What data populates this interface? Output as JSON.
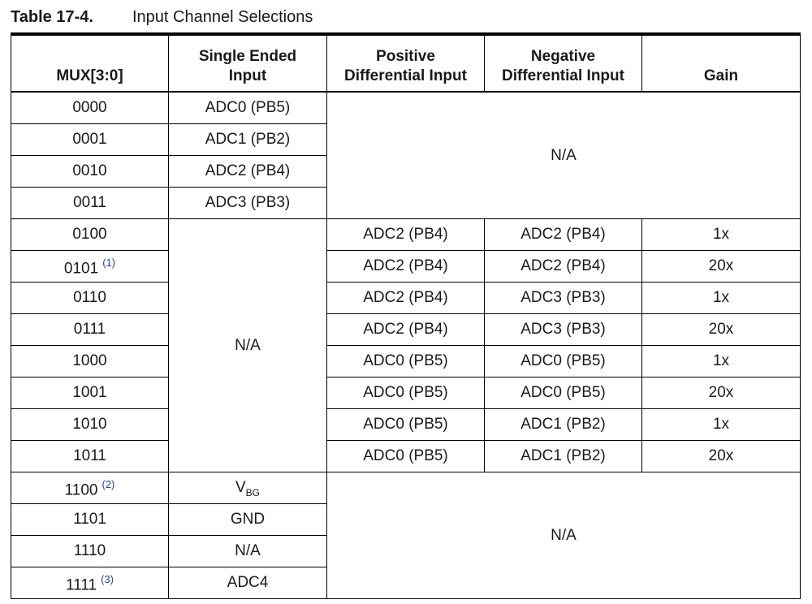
{
  "caption": {
    "number": "Table 17-4.",
    "title": "Input Channel Selections"
  },
  "headers": {
    "mux": "MUX[3:0]",
    "single_line1": "Single Ended",
    "single_line2": "Input",
    "pos_line1": "Positive",
    "pos_line2": "Differential Input",
    "neg_line1": "Negative",
    "neg_line2": "Differential Input",
    "gain": "Gain"
  },
  "na": "N/A",
  "rows": [
    {
      "mux": "0000",
      "single": "ADC0 (PB5)"
    },
    {
      "mux": "0001",
      "single": "ADC1 (PB2)"
    },
    {
      "mux": "0010",
      "single": "ADC2 (PB4)"
    },
    {
      "mux": "0011",
      "single": "ADC3 (PB3)"
    },
    {
      "mux": "0100",
      "pos": "ADC2 (PB4)",
      "neg": "ADC2 (PB4)",
      "gain": "1x"
    },
    {
      "mux": "0101",
      "note": "(1)",
      "pos": "ADC2 (PB4)",
      "neg": "ADC2 (PB4)",
      "gain": "20x"
    },
    {
      "mux": "0110",
      "pos": "ADC2 (PB4)",
      "neg": "ADC3 (PB3)",
      "gain": "1x"
    },
    {
      "mux": "0111",
      "pos": "ADC2 (PB4)",
      "neg": "ADC3 (PB3)",
      "gain": "20x"
    },
    {
      "mux": "1000",
      "pos": "ADC0 (PB5)",
      "neg": "ADC0 (PB5)",
      "gain": "1x"
    },
    {
      "mux": "1001",
      "pos": "ADC0 (PB5)",
      "neg": "ADC0 (PB5)",
      "gain": "20x"
    },
    {
      "mux": "1010",
      "pos": "ADC0 (PB5)",
      "neg": "ADC1 (PB2)",
      "gain": "1x"
    },
    {
      "mux": "1011",
      "pos": "ADC0 (PB5)",
      "neg": "ADC1 (PB2)",
      "gain": "20x"
    },
    {
      "mux": "1100",
      "note": "(2)",
      "single_base": "V",
      "single_sub": "BG"
    },
    {
      "mux": "1101",
      "single": "GND"
    },
    {
      "mux": "1110",
      "single": "N/A"
    },
    {
      "mux": "1111",
      "note": "(3)",
      "single": "ADC4"
    }
  ]
}
